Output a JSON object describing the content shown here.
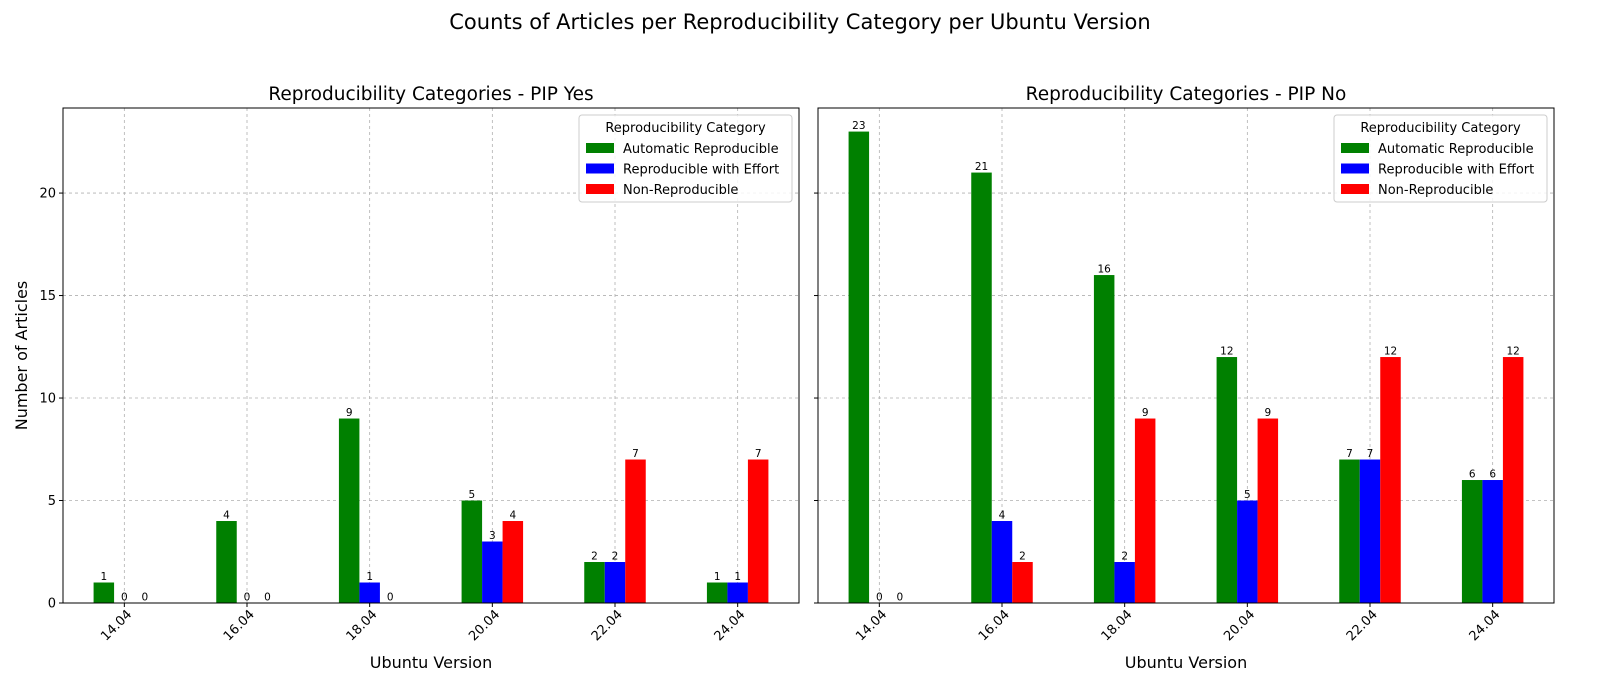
{
  "suptitle": "Counts of Articles per Reproducibility Category per Ubuntu Version",
  "colors": {
    "Automatic Reproducible": "#008000",
    "Reproducible with Effort": "#0000ff",
    "Non-Reproducible": "#ff0000"
  },
  "chart_data": [
    {
      "type": "bar",
      "title": "Reproducibility Categories - PIP Yes",
      "xlabel": "Ubuntu Version",
      "ylabel": "Number of Articles",
      "categories": [
        "14.04",
        "16.04",
        "18.04",
        "20.04",
        "22.04",
        "24.04"
      ],
      "ylim": [
        0,
        24.15
      ],
      "yticks": [
        0,
        5,
        10,
        15,
        20
      ],
      "grid": true,
      "legend": {
        "title": "Reproducibility Category",
        "placement": "upper right"
      },
      "series": [
        {
          "name": "Automatic Reproducible",
          "values": [
            1,
            4,
            9,
            5,
            2,
            1
          ]
        },
        {
          "name": "Reproducible with Effort",
          "values": [
            0,
            0,
            1,
            3,
            2,
            1
          ]
        },
        {
          "name": "Non-Reproducible",
          "values": [
            0,
            0,
            0,
            4,
            7,
            7
          ]
        }
      ]
    },
    {
      "type": "bar",
      "title": "Reproducibility Categories - PIP No",
      "xlabel": "Ubuntu Version",
      "ylabel": "",
      "categories": [
        "14.04",
        "16.04",
        "18.04",
        "20.04",
        "22.04",
        "24.04"
      ],
      "ylim": [
        0,
        24.15
      ],
      "yticks": [
        0,
        5,
        10,
        15,
        20
      ],
      "grid": true,
      "legend": {
        "title": "Reproducibility Category",
        "placement": "upper right"
      },
      "series": [
        {
          "name": "Automatic Reproducible",
          "values": [
            23,
            21,
            16,
            12,
            7,
            6
          ]
        },
        {
          "name": "Reproducible with Effort",
          "values": [
            0,
            4,
            2,
            5,
            7,
            6
          ]
        },
        {
          "name": "Non-Reproducible",
          "values": [
            0,
            2,
            9,
            9,
            12,
            12
          ]
        }
      ]
    }
  ]
}
